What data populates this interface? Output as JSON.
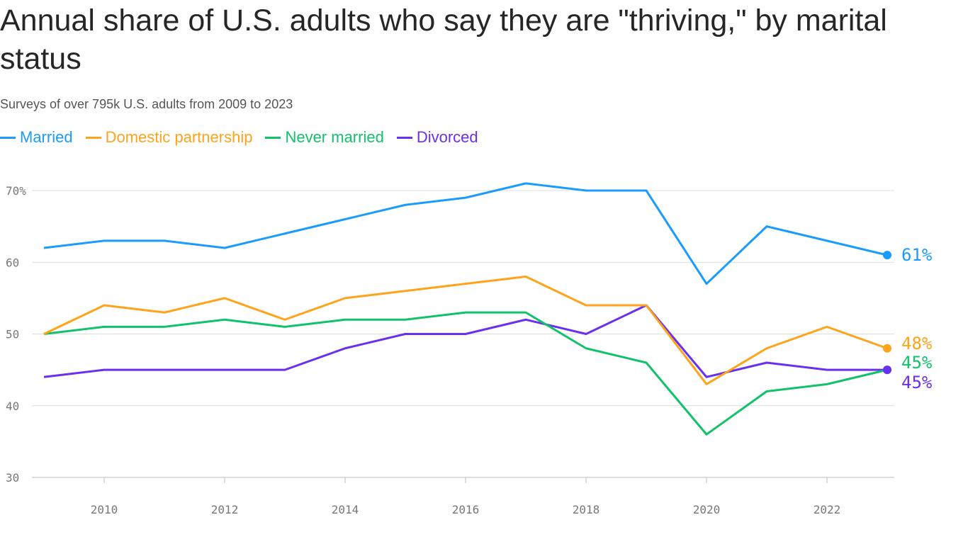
{
  "chart_data": {
    "type": "line",
    "title": "Annual share of U.S. adults who say they are \"thriving,\" by marital status",
    "subtitle": "Surveys of over 795k U.S. adults from 2009 to 2023",
    "xlabel": "",
    "ylabel": "",
    "x": [
      2009,
      2010,
      2011,
      2012,
      2013,
      2014,
      2015,
      2016,
      2017,
      2018,
      2019,
      2020,
      2021,
      2022,
      2023
    ],
    "xticks": [
      "2010",
      "2012",
      "2014",
      "2016",
      "2018",
      "2020",
      "2022"
    ],
    "yticks": [
      "30",
      "40",
      "50",
      "60",
      "70%"
    ],
    "ylim": [
      30,
      72
    ],
    "grid": true,
    "legend_position": "top-left",
    "series": [
      {
        "name": "Married",
        "color": "#1a9cff",
        "end_label": "61%",
        "values": [
          62,
          63,
          63,
          62,
          64,
          66,
          68,
          69,
          71,
          70,
          70,
          57,
          65,
          63,
          61
        ]
      },
      {
        "name": "Domestic partnership",
        "color": "#ffa31a",
        "end_label": "48%",
        "values": [
          50,
          54,
          53,
          55,
          52,
          55,
          56,
          57,
          58,
          54,
          54,
          43,
          48,
          51,
          48
        ]
      },
      {
        "name": "Never married",
        "color": "#12c26a",
        "end_label": "45%",
        "values": [
          50,
          51,
          51,
          52,
          51,
          52,
          52,
          53,
          53,
          48,
          46,
          36,
          42,
          43,
          45
        ]
      },
      {
        "name": "Divorced",
        "color": "#6b2ff0",
        "end_label": "45%",
        "values": [
          44,
          45,
          45,
          45,
          45,
          48,
          50,
          50,
          52,
          50,
          54,
          44,
          46,
          45,
          45
        ]
      }
    ]
  }
}
